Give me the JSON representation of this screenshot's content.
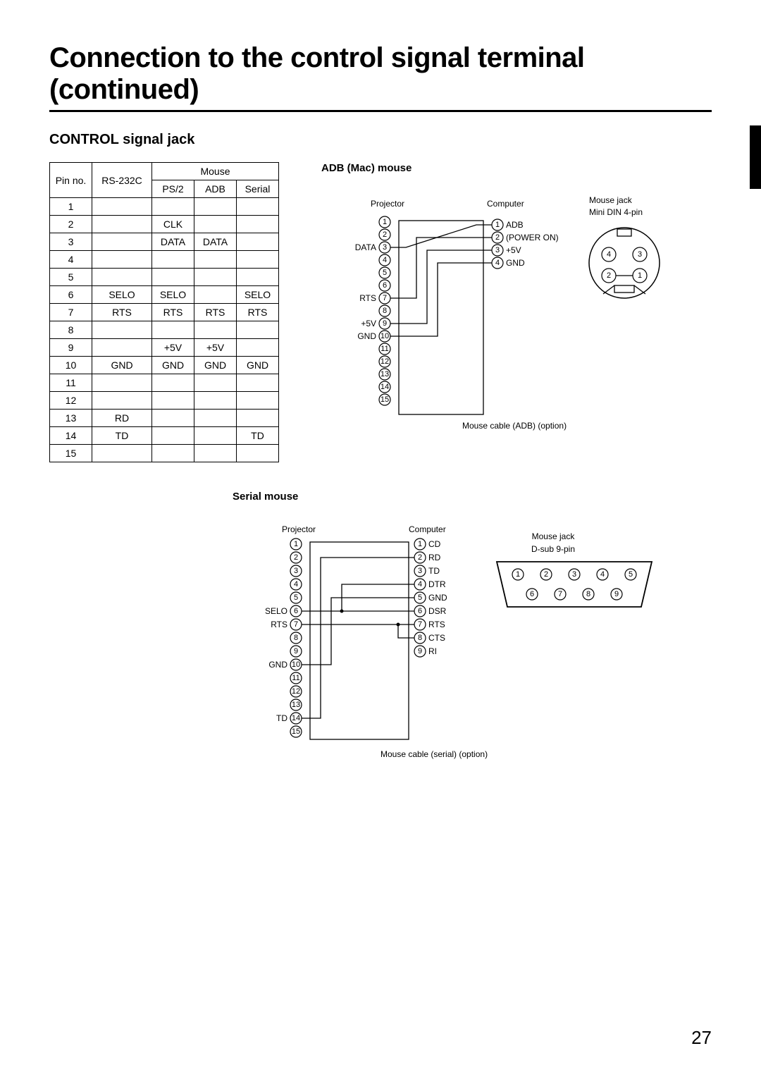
{
  "title": "Connection to the control signal terminal (continued)",
  "section": "CONTROL signal jack",
  "page_number": "27",
  "table": {
    "head": {
      "pin": "Pin no.",
      "rs": "RS-232C",
      "mouse": "Mouse",
      "ps2": "PS/2",
      "adb": "ADB",
      "serial": "Serial"
    },
    "rows": [
      {
        "n": "1",
        "rs": "",
        "ps2": "",
        "adb": "",
        "ser": ""
      },
      {
        "n": "2",
        "rs": "",
        "ps2": "CLK",
        "adb": "",
        "ser": ""
      },
      {
        "n": "3",
        "rs": "",
        "ps2": "DATA",
        "adb": "DATA",
        "ser": ""
      },
      {
        "n": "4",
        "rs": "",
        "ps2": "",
        "adb": "",
        "ser": ""
      },
      {
        "n": "5",
        "rs": "",
        "ps2": "",
        "adb": "",
        "ser": ""
      },
      {
        "n": "6",
        "rs": "SELO",
        "ps2": "SELO",
        "adb": "",
        "ser": "SELO"
      },
      {
        "n": "7",
        "rs": "RTS",
        "ps2": "RTS",
        "adb": "RTS",
        "ser": "RTS"
      },
      {
        "n": "8",
        "rs": "",
        "ps2": "",
        "adb": "",
        "ser": ""
      },
      {
        "n": "9",
        "rs": "",
        "ps2": "+5V",
        "adb": "+5V",
        "ser": ""
      },
      {
        "n": "10",
        "rs": "GND",
        "ps2": "GND",
        "adb": "GND",
        "ser": "GND"
      },
      {
        "n": "11",
        "rs": "",
        "ps2": "",
        "adb": "",
        "ser": ""
      },
      {
        "n": "12",
        "rs": "",
        "ps2": "",
        "adb": "",
        "ser": ""
      },
      {
        "n": "13",
        "rs": "RD",
        "ps2": "",
        "adb": "",
        "ser": ""
      },
      {
        "n": "14",
        "rs": "TD",
        "ps2": "",
        "adb": "",
        "ser": "TD"
      },
      {
        "n": "15",
        "rs": "",
        "ps2": "",
        "adb": "",
        "ser": ""
      }
    ]
  },
  "adb": {
    "title": "ADB (Mac) mouse",
    "projector": "Projector",
    "computer": "Computer",
    "jack_label1": "Mouse jack",
    "jack_label2": "Mini DIN 4-pin",
    "left_labels": {
      "3": "DATA",
      "7": "RTS",
      "9": "+5V",
      "10": "GND"
    },
    "right_labels": {
      "1": "ADB",
      "2": "(POWER ON)",
      "3": "+5V",
      "4": "GND"
    },
    "cable": "Mouse cable (ADB) (option)",
    "din_pins": [
      "4",
      "3",
      "2",
      "1"
    ]
  },
  "serial": {
    "title": "Serial mouse",
    "projector": "Projector",
    "computer": "Computer",
    "jack_label1": "Mouse jack",
    "jack_label2": "D-sub 9-pin",
    "left_labels": {
      "6": "SELO",
      "7": "RTS",
      "10": "GND",
      "14": "TD"
    },
    "right_labels": {
      "1": "CD",
      "2": "RD",
      "3": "TD",
      "4": "DTR",
      "5": "GND",
      "6": "DSR",
      "7": "RTS",
      "8": "CTS",
      "9": "RI"
    },
    "cable": "Mouse cable (serial) (option)",
    "dsub_top": [
      "1",
      "2",
      "3",
      "4",
      "5"
    ],
    "dsub_bot": [
      "6",
      "7",
      "8",
      "9"
    ]
  }
}
